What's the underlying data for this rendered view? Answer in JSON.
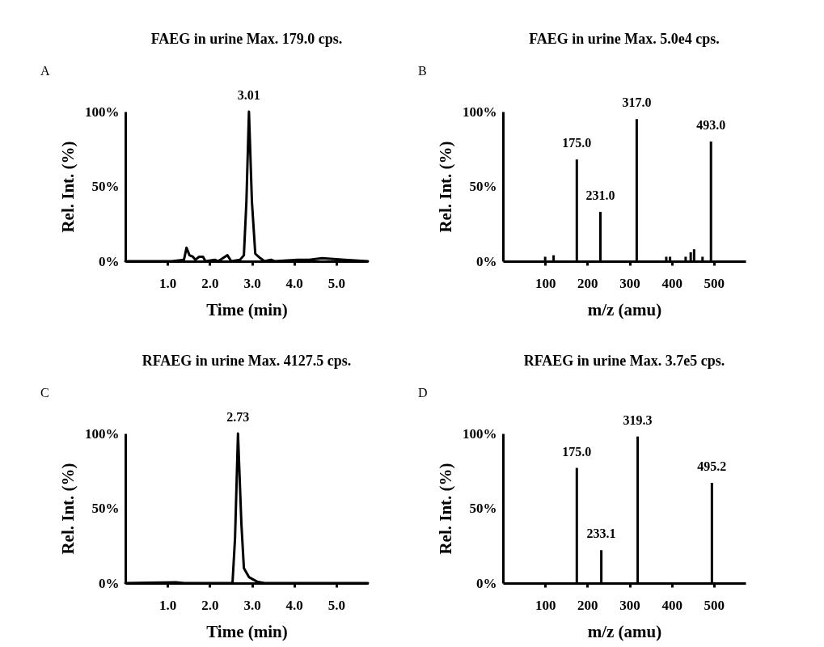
{
  "chart_data": [
    {
      "type": "line",
      "title": "FAEG in urine Max. 179.0 cps.",
      "xlabel": "Time (min)",
      "ylabel": "Rel. Int. (%)",
      "color": "#000000",
      "x": [
        0,
        1.1,
        1.39,
        1.45,
        1.52,
        1.6,
        1.66,
        1.75,
        1.84,
        1.9,
        2.12,
        2.2,
        2.42,
        2.51,
        2.72,
        2.81,
        2.87,
        2.93,
        3.0,
        3.08,
        3.2,
        3.3,
        3.45,
        3.54,
        4.08,
        4.36,
        4.66,
        5.2,
        5.75
      ],
      "values": [
        0,
        0,
        1,
        9,
        4,
        3,
        1,
        3,
        3,
        0,
        1,
        0,
        4,
        0,
        1,
        4,
        40,
        100,
        40,
        5,
        2,
        0,
        1,
        0,
        1,
        1,
        2,
        1,
        0
      ],
      "xlim": [
        0,
        5.75
      ],
      "xticks": [
        {
          "value": 1,
          "label": "1.0"
        },
        {
          "value": 2,
          "label": "2.0"
        },
        {
          "value": 3,
          "label": "3.0"
        },
        {
          "value": 4,
          "label": "4.0"
        },
        {
          "value": 5,
          "label": "5.0"
        }
      ],
      "ylim": [
        0,
        100
      ],
      "yticks": [
        {
          "value": 0,
          "label": "0%"
        },
        {
          "value": 50,
          "label": "50%"
        },
        {
          "value": 100,
          "label": "100%"
        }
      ],
      "annotations": [
        "A",
        {
          "text": "3.01",
          "x": 2.93,
          "y": 100
        }
      ]
    },
    {
      "type": "bar",
      "title": "FAEG in urine Max. 5.0e4 cps.",
      "xlabel": "m/z (amu)",
      "ylabel": "Rel. Int. (%)",
      "color": "#000000",
      "x": [
        100,
        120,
        175,
        231,
        317,
        387,
        396,
        433,
        445,
        453,
        473,
        493
      ],
      "values": [
        3,
        4,
        68,
        33,
        95,
        3,
        3,
        3,
        6,
        8,
        3,
        80
      ],
      "xlim": [
        0,
        575
      ],
      "xticks": [
        100,
        200,
        300,
        400,
        500
      ],
      "ylim": [
        0,
        100
      ],
      "yticks": [
        {
          "value": 0,
          "label": "0%"
        },
        {
          "value": 50,
          "label": "50%"
        },
        {
          "value": 100,
          "label": "100%"
        }
      ],
      "annotations": [
        "B",
        {
          "text": "175.0",
          "x": 175,
          "y": 68
        },
        {
          "text": "231.0",
          "x": 231,
          "y": 33
        },
        {
          "text": "317.0",
          "x": 317,
          "y": 95
        },
        {
          "text": "493.0",
          "x": 493,
          "y": 80
        }
      ]
    },
    {
      "type": "line",
      "title": "RFAEG in urine Max. 4127.5 cps.",
      "xlabel": "Time (min)",
      "ylabel": "Rel. Int. (%)",
      "color": "#000000",
      "x": [
        0,
        1.2,
        1.4,
        2.54,
        2.6,
        2.67,
        2.75,
        2.81,
        2.93,
        3.12,
        3.3,
        5.75
      ],
      "values": [
        0,
        0.5,
        0,
        0,
        30,
        100,
        40,
        10,
        4,
        1,
        0,
        0
      ],
      "xlim": [
        0,
        5.75
      ],
      "xticks": [
        {
          "value": 1,
          "label": "1.0"
        },
        {
          "value": 2,
          "label": "2.0"
        },
        {
          "value": 3,
          "label": "3.0"
        },
        {
          "value": 4,
          "label": "4.0"
        },
        {
          "value": 5,
          "label": "5.0"
        }
      ],
      "ylim": [
        0,
        100
      ],
      "yticks": [
        {
          "value": 0,
          "label": "0%"
        },
        {
          "value": 50,
          "label": "50%"
        },
        {
          "value": 100,
          "label": "100%"
        }
      ],
      "annotations": [
        "C",
        {
          "text": "2.73",
          "x": 2.67,
          "y": 100
        }
      ]
    },
    {
      "type": "bar",
      "title": "RFAEG in urine Max. 3.7e5 cps.",
      "xlabel": "m/z (amu)",
      "ylabel": "Rel. Int. (%)",
      "color": "#000000",
      "x": [
        175,
        233.1,
        319.3,
        495.2
      ],
      "values": [
        77,
        22,
        98,
        67
      ],
      "xlim": [
        0,
        575
      ],
      "xticks": [
        100,
        200,
        300,
        400,
        500
      ],
      "ylim": [
        0,
        100
      ],
      "yticks": [
        {
          "value": 0,
          "label": "0%"
        },
        {
          "value": 50,
          "label": "50%"
        },
        {
          "value": 100,
          "label": "100%"
        }
      ],
      "annotations": [
        "D",
        {
          "text": "175.0",
          "x": 175,
          "y": 77
        },
        {
          "text": "233.1",
          "x": 233.1,
          "y": 22
        },
        {
          "text": "319.3",
          "x": 319.3,
          "y": 98
        },
        {
          "text": "495.2",
          "x": 495.2,
          "y": 67
        }
      ]
    }
  ]
}
